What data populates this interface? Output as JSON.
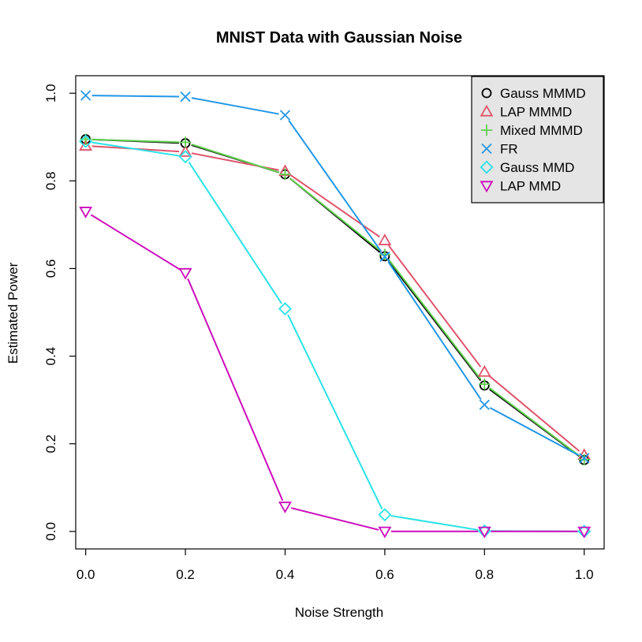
{
  "chart_data": {
    "type": "line",
    "title": "MNIST Data with Gaussian Noise",
    "xlabel": "Noise Strength",
    "ylabel": "Estimated Power",
    "xlim": [
      -0.02,
      1.04
    ],
    "ylim": [
      -0.04,
      1.04
    ],
    "xticks": [
      0.0,
      0.2,
      0.4,
      0.6,
      0.8,
      1.0
    ],
    "xtick_labels": [
      "0.0",
      "0.2",
      "0.4",
      "0.6",
      "0.8",
      "1.0"
    ],
    "yticks": [
      0.0,
      0.2,
      0.4,
      0.6,
      0.8,
      1.0
    ],
    "ytick_labels": [
      "0.0",
      "0.2",
      "0.4",
      "0.6",
      "0.8",
      "1.0"
    ],
    "grid": false,
    "legend_position": "top-right",
    "x": [
      0.0,
      0.2,
      0.4,
      0.6,
      0.8,
      1.0
    ],
    "series": [
      {
        "name": "Gauss MMMD",
        "color": "#000000",
        "marker": "circle",
        "values": [
          0.895,
          0.886,
          0.815,
          0.628,
          0.333,
          0.163
        ]
      },
      {
        "name": "LAP MMMD",
        "color": "#DF536B",
        "marker": "triangle-up",
        "values": [
          0.88,
          0.866,
          0.822,
          0.664,
          0.364,
          0.174
        ]
      },
      {
        "name": "Mixed MMMD",
        "color": "#61D04F",
        "marker": "plus",
        "values": [
          0.895,
          0.888,
          0.815,
          0.632,
          0.336,
          0.164
        ]
      },
      {
        "name": "FR",
        "color": "#2297E6",
        "marker": "cross",
        "values": [
          0.995,
          0.992,
          0.95,
          0.627,
          0.289,
          0.167
        ]
      },
      {
        "name": "Gauss MMD",
        "color": "#28E2E5",
        "marker": "diamond",
        "values": [
          0.89,
          0.855,
          0.508,
          0.038,
          0.001,
          0.0
        ]
      },
      {
        "name": "LAP MMD",
        "color": "#CD0BBC",
        "marker": "triangle-down",
        "values": [
          0.73,
          0.59,
          0.057,
          0.0,
          0.0,
          0.0
        ]
      }
    ]
  }
}
